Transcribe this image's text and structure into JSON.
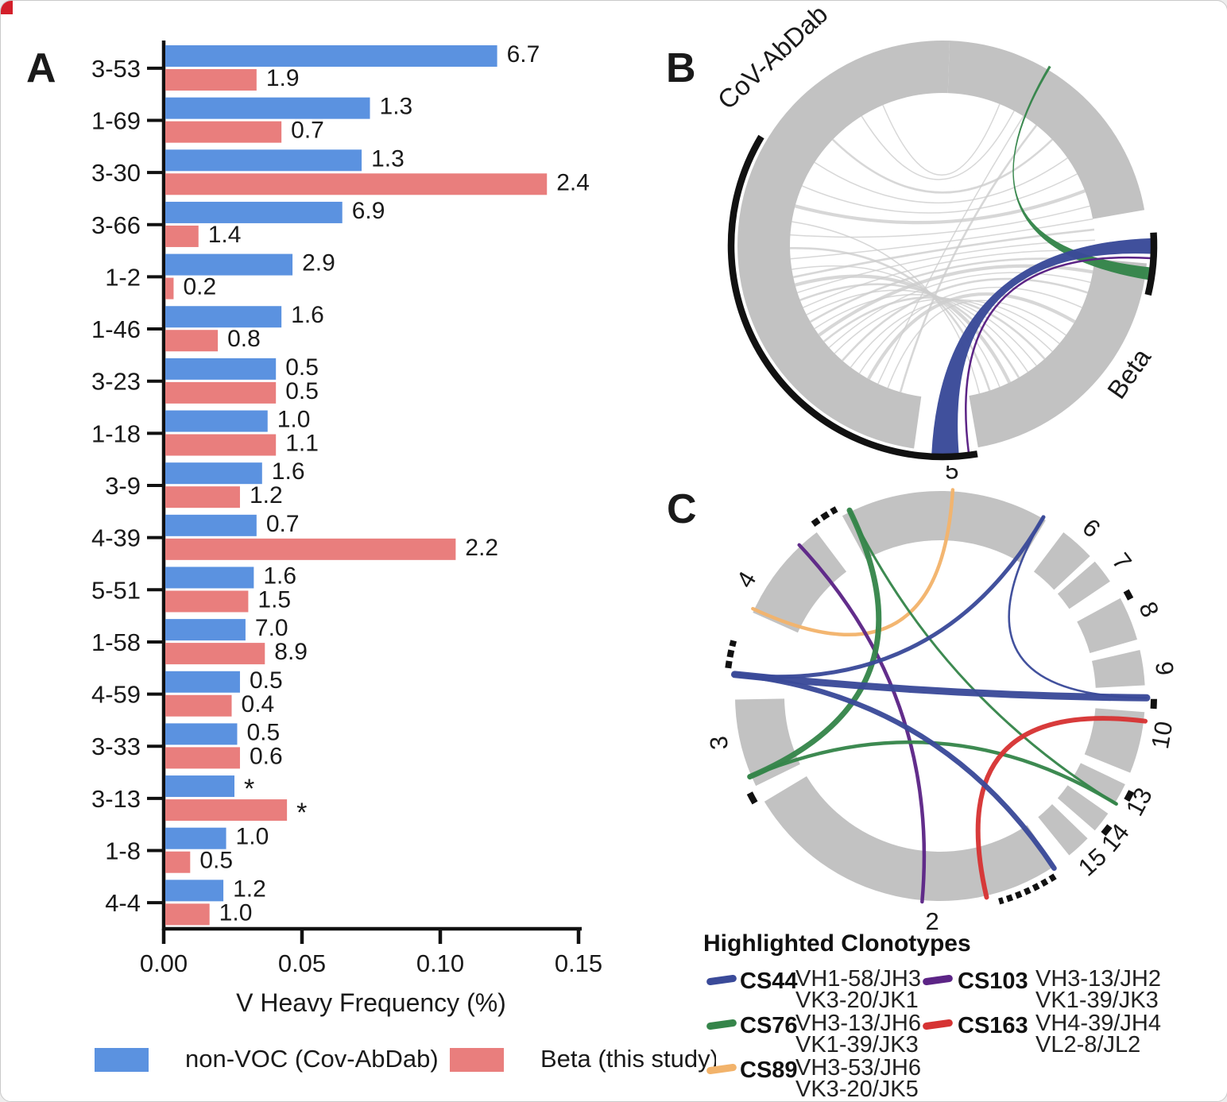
{
  "figure": {
    "panel_letters": [
      "A",
      "B",
      "C"
    ]
  },
  "chart_data": [
    {
      "id": "A",
      "type": "bar",
      "orientation": "horizontal",
      "title": "",
      "xlabel": "V Heavy Frequency (%)",
      "xlim": [
        0,
        0.15
      ],
      "xticks": [
        "0.00",
        "0.05",
        "0.10",
        "0.15"
      ],
      "categories": [
        "3-53",
        "1-69",
        "3-30",
        "3-66",
        "1-2",
        "1-46",
        "3-23",
        "1-18",
        "3-9",
        "4-39",
        "5-51",
        "1-58",
        "4-59",
        "3-33",
        "3-13",
        "1-8",
        "4-4"
      ],
      "series": [
        {
          "name": "non-VOC (Cov-AbDab)",
          "color": "#5B92E0",
          "values": [
            0.12,
            0.074,
            0.071,
            0.064,
            0.046,
            0.042,
            0.04,
            0.037,
            0.035,
            0.033,
            0.032,
            0.029,
            0.027,
            0.026,
            0.025,
            0.022,
            0.021
          ],
          "labels": [
            "6.7",
            "1.3",
            "1.3",
            "6.9",
            "2.9",
            "1.6",
            "0.5",
            "1.0",
            "1.6",
            "0.7",
            "1.6",
            "7.0",
            "0.5",
            "0.5",
            "*",
            "1.0",
            "1.2"
          ]
        },
        {
          "name": "Beta (this study)",
          "color": "#E97E7D",
          "values": [
            0.033,
            0.042,
            0.138,
            0.012,
            0.003,
            0.019,
            0.04,
            0.04,
            0.027,
            0.105,
            0.03,
            0.036,
            0.024,
            0.027,
            0.044,
            0.009,
            0.016
          ],
          "labels": [
            "1.9",
            "0.7",
            "2.4",
            "1.4",
            "0.2",
            "0.8",
            "0.5",
            "1.1",
            "1.2",
            "2.2",
            "1.5",
            "8.9",
            "0.4",
            "0.6",
            "*",
            "0.5",
            "1.0"
          ]
        }
      ]
    },
    {
      "id": "B",
      "type": "chord",
      "groups": [
        "CoV-AbDab",
        "Beta"
      ],
      "highlighted_links": [
        {
          "clonotype": "CS44",
          "color": "#3A4A99",
          "style": "thick ribbon"
        },
        {
          "clonotype": "CS76",
          "color": "#35854A",
          "style": "ribbon"
        },
        {
          "clonotype": "CS103",
          "color": "#5C2486",
          "style": "thin line"
        }
      ],
      "background_links": "many thin gray chords between CoV-AbDab and Beta"
    },
    {
      "id": "C",
      "type": "chord",
      "segments": [
        "5",
        "6",
        "7",
        "8",
        "9",
        "10",
        "13",
        "14",
        "15",
        "2",
        "3",
        "4"
      ],
      "links": [
        {
          "clonotype": "CS44",
          "color": "#3A4A99",
          "between": [
            "3/4 boundary",
            "9/10 boundary",
            "5/6 boundary",
            "15/2 boundary"
          ]
        },
        {
          "clonotype": "CS76",
          "color": "#35854A",
          "between": [
            "5",
            "3",
            "13"
          ]
        },
        {
          "clonotype": "CS89",
          "color": "#F2B36B",
          "between": [
            "5",
            "4"
          ]
        },
        {
          "clonotype": "CS103",
          "color": "#5C2486",
          "between": [
            "4",
            "2"
          ]
        },
        {
          "clonotype": "CS163",
          "color": "#D63333",
          "between": [
            "10",
            "2"
          ]
        }
      ]
    }
  ],
  "panel_a": {
    "label": "A",
    "x_axis_label": "V Heavy Frequency (%)",
    "x_tick_labels": [
      "0.00",
      "0.05",
      "0.10",
      "0.15"
    ],
    "legend": [
      {
        "label": "non-VOC (Cov-AbDab)",
        "color": "#5B92E0"
      },
      {
        "label": "Beta (this study)",
        "color": "#E97E7D"
      }
    ]
  },
  "panel_b": {
    "label": "B",
    "arc_labels": [
      "CoV-AbDab",
      "Beta"
    ]
  },
  "panel_c": {
    "label": "C",
    "segment_labels": [
      "5",
      "6",
      "7",
      "8",
      "9",
      "10",
      "13",
      "14",
      "15",
      "2",
      "3",
      "4"
    ],
    "legend_title": "Highlighted Clonotypes",
    "legend": [
      {
        "name": "CS44",
        "color": "#3A4A99",
        "lines": [
          "VH1-58/JH3",
          "VK3-20/JK1"
        ]
      },
      {
        "name": "CS76",
        "color": "#35854A",
        "lines": [
          "VH3-13/JH6",
          "VK1-39/JK3"
        ]
      },
      {
        "name": "CS89",
        "color": "#F2B36B",
        "lines": [
          "VH3-53/JH6",
          "VK3-20/JK5"
        ]
      },
      {
        "name": "CS103",
        "color": "#5C2486",
        "lines": [
          "VH3-13/JH2",
          "VK1-39/JK3"
        ]
      },
      {
        "name": "CS163",
        "color": "#D63333",
        "lines": [
          "VH4-39/JH4",
          "VL2-8/JL2"
        ]
      }
    ]
  }
}
